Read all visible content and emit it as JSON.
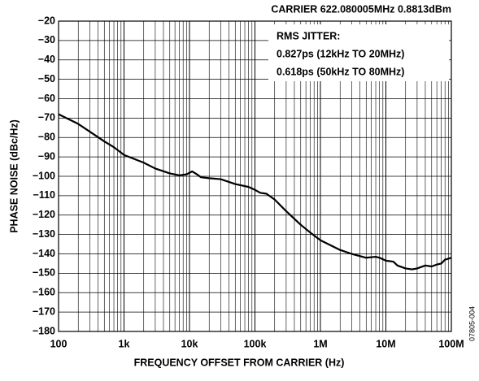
{
  "chart_data": {
    "type": "line",
    "title": "CARRIER 622.080005MHz   0.8813dBm",
    "annotations": [
      "RMS JITTER:",
      "0.827ps (12kHz TO 20MHz)",
      "0.618ps (50kHz TO 80MHz)"
    ],
    "side_label": "07805-004",
    "xlabel": "FREQUENCY OFFSET FROM CARRIER (Hz)",
    "ylabel": "PHASE NOISE (dBc/Hz)",
    "xlog": true,
    "grid": true,
    "color": "#000000",
    "xlim": [
      100,
      100000000
    ],
    "xticks": [
      100,
      {
        "value": 1000,
        "label": "1k"
      },
      {
        "value": 10000,
        "label": "10k"
      },
      {
        "value": 100000,
        "label": "100k"
      },
      {
        "value": 1000000,
        "label": "1M"
      },
      {
        "value": 10000000,
        "label": "10M"
      },
      {
        "value": 100000000,
        "label": "100M"
      }
    ],
    "ylim": [
      -180,
      -20
    ],
    "yticks": [
      {
        "value": -20,
        "label": "−20"
      },
      {
        "value": -30,
        "label": "−30"
      },
      {
        "value": -40,
        "label": "−40"
      },
      {
        "value": -50,
        "label": "−50"
      },
      {
        "value": -60,
        "label": "−60"
      },
      {
        "value": -70,
        "label": "−70"
      },
      {
        "value": -80,
        "label": "−80"
      },
      {
        "value": -90,
        "label": "−90"
      },
      {
        "value": -100,
        "label": "−100"
      },
      {
        "value": -110,
        "label": "−110"
      },
      {
        "value": -120,
        "label": "−120"
      },
      {
        "value": -130,
        "label": "−130"
      },
      {
        "value": -140,
        "label": "−140"
      },
      {
        "value": -150,
        "label": "−150"
      },
      {
        "value": -160,
        "label": "−160"
      },
      {
        "value": -170,
        "label": "−170"
      },
      {
        "value": -180,
        "label": "−180"
      }
    ],
    "x": [
      100,
      200,
      300,
      500,
      700,
      1000,
      2000,
      3000,
      5000,
      7000,
      9000,
      11000,
      13000,
      15000,
      20000,
      30000,
      50000,
      80000,
      100000,
      120000,
      150000,
      200000,
      300000,
      500000,
      700000,
      1000000,
      2000000,
      3000000,
      5000000,
      7000000,
      8000000,
      10000000,
      13000000,
      15000000,
      20000000,
      25000000,
      30000000,
      40000000,
      50000000,
      60000000,
      70000000,
      80000000,
      100000000
    ],
    "values": [
      -68,
      -73,
      -77,
      -82,
      -85,
      -89,
      -93,
      -96,
      -98.5,
      -99.5,
      -99,
      -97.5,
      -99,
      -100.5,
      -101,
      -101.5,
      -104,
      -105.5,
      -107,
      -108.5,
      -109,
      -112,
      -118,
      -125,
      -129,
      -133,
      -138,
      -140,
      -142,
      -141.5,
      -142,
      -143.5,
      -144,
      -146,
      -147.5,
      -148,
      -147.5,
      -146,
      -146.5,
      -145.5,
      -145,
      -143,
      -142
    ]
  }
}
